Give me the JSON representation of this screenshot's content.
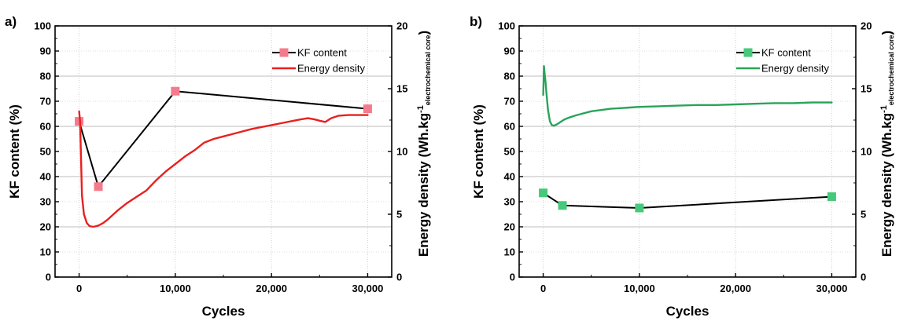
{
  "chart_data": [
    {
      "type": "line",
      "panel_label": "a)",
      "xlabel": "Cycles",
      "ylabel": "KF content (%)",
      "y2label_main": "Energy density (Wh.kg",
      "y2label_sup": "-1",
      "y2label_sub": "electrochemical core",
      "y2label_close": ")",
      "xlim": [
        -2500,
        32500
      ],
      "ylim": [
        0,
        100
      ],
      "y2lim": [
        0,
        20
      ],
      "xticks": [
        0,
        10000,
        20000,
        30000
      ],
      "xtick_labels": [
        "0",
        "10,000",
        "20,000",
        "30,000"
      ],
      "yticks": [
        0,
        10,
        20,
        30,
        40,
        50,
        60,
        70,
        80,
        90,
        100
      ],
      "ytick_labels": [
        "0",
        "10",
        "20",
        "30",
        "40",
        "50",
        "60",
        "70",
        "80",
        "90",
        "100"
      ],
      "y2ticks": [
        0,
        5,
        10,
        15,
        20
      ],
      "y2tick_labels": [
        "0",
        "5",
        "10",
        "15",
        "20"
      ],
      "grid": true,
      "legend_position": "top-right",
      "series": [
        {
          "name": "KF content",
          "axis": "left",
          "kind": "line-marker",
          "color": "#000000",
          "marker_color": "#f47b8c",
          "x": [
            0,
            2000,
            10000,
            30000
          ],
          "y": [
            62,
            36,
            74,
            67
          ]
        },
        {
          "name": "Energy density",
          "axis": "right",
          "kind": "line",
          "color": "#e8201f",
          "x": [
            0,
            100,
            200,
            300,
            500,
            800,
            1100,
            1500,
            2000,
            2500,
            3000,
            4000,
            5000,
            6000,
            7000,
            8000,
            9000,
            10000,
            11000,
            12000,
            13000,
            14000,
            15000,
            16000,
            17000,
            18000,
            19000,
            20000,
            21000,
            22000,
            23000,
            23800,
            24500,
            25000,
            25600,
            26200,
            27000,
            28000,
            29000,
            30000
          ],
          "y": [
            13.2,
            12.4,
            9.5,
            6.5,
            5.0,
            4.3,
            4.05,
            4.0,
            4.1,
            4.3,
            4.6,
            5.3,
            5.9,
            6.4,
            6.9,
            7.7,
            8.4,
            9.0,
            9.6,
            10.1,
            10.7,
            11.0,
            11.2,
            11.4,
            11.6,
            11.8,
            11.95,
            12.1,
            12.25,
            12.4,
            12.55,
            12.65,
            12.55,
            12.45,
            12.35,
            12.65,
            12.85,
            12.9,
            12.9,
            12.9
          ]
        }
      ]
    },
    {
      "type": "line",
      "panel_label": "b)",
      "xlabel": "Cycles",
      "ylabel": "KF content (%)",
      "y2label_main": "Energy density (Wh.kg",
      "y2label_sup": "-1",
      "y2label_sub": "electrochemical core",
      "y2label_close": ")",
      "xlim": [
        -2500,
        32500
      ],
      "ylim": [
        0,
        100
      ],
      "y2lim": [
        0,
        20
      ],
      "xticks": [
        0,
        10000,
        20000,
        30000
      ],
      "xtick_labels": [
        "0",
        "10,000",
        "20,000",
        "30,000"
      ],
      "yticks": [
        0,
        10,
        20,
        30,
        40,
        50,
        60,
        70,
        80,
        90,
        100
      ],
      "ytick_labels": [
        "0",
        "10",
        "20",
        "30",
        "40",
        "50",
        "60",
        "70",
        "80",
        "90",
        "100"
      ],
      "y2ticks": [
        0,
        5,
        10,
        15,
        20
      ],
      "y2tick_labels": [
        "0",
        "5",
        "10",
        "15",
        "20"
      ],
      "grid": true,
      "legend_position": "top-right",
      "series": [
        {
          "name": "KF content",
          "axis": "left",
          "kind": "line-marker",
          "color": "#000000",
          "marker_color": "#45c97a",
          "x": [
            0,
            2000,
            10000,
            30000
          ],
          "y": [
            33.5,
            28.5,
            27.5,
            32
          ]
        },
        {
          "name": "Energy density",
          "axis": "right",
          "kind": "line",
          "color": "#2aa35a",
          "x": [
            0,
            80,
            150,
            250,
            350,
            500,
            700,
            900,
            1100,
            1400,
            1800,
            2200,
            2700,
            3300,
            4000,
            5000,
            6000,
            7000,
            8000,
            9000,
            10000,
            12000,
            14000,
            16000,
            18000,
            20000,
            22000,
            24000,
            26000,
            28000,
            30000
          ],
          "y": [
            14.5,
            16.8,
            16.2,
            15.5,
            14.5,
            13.3,
            12.4,
            12.1,
            12.05,
            12.15,
            12.35,
            12.55,
            12.7,
            12.85,
            13.0,
            13.2,
            13.3,
            13.4,
            13.45,
            13.5,
            13.55,
            13.6,
            13.65,
            13.7,
            13.7,
            13.75,
            13.8,
            13.85,
            13.85,
            13.9,
            13.9
          ]
        }
      ]
    }
  ]
}
